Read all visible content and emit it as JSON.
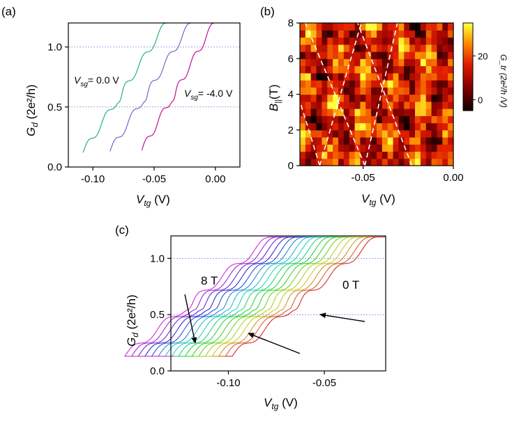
{
  "chart_data": [
    {
      "panel_label": "(a)",
      "type": "line",
      "xlabel_main": "V",
      "xlabel_sub": "tg",
      "xlabel_unit": " (V)",
      "ylabel_main": "G",
      "ylabel_sub": "d",
      "ylabel_unit": " (2e²/h)",
      "xlim": [
        -0.12,
        0.02
      ],
      "ylim": [
        0,
        1.2
      ],
      "xticks": [
        -0.1,
        -0.05,
        0.0
      ],
      "xtick_labels": [
        "-0.10",
        "-0.05",
        "0.00"
      ],
      "yticks": [
        0.0,
        0.5,
        1.0
      ],
      "ytick_labels": [
        "0.0",
        "0.5",
        "1.0"
      ],
      "grid_y": [
        0.5,
        1.0
      ],
      "annotations": [
        {
          "main": "V",
          "sub": "sg",
          "rest": "= 0.0 V"
        },
        {
          "main": "V",
          "sub": "sg",
          "rest": "= -4.0 V"
        }
      ],
      "series": [
        {
          "color": "#2ab07f",
          "x_start": -0.108,
          "x_end": -0.04,
          "y_start": 0.12,
          "y_end": 1.2
        },
        {
          "color": "#6c6cc4",
          "x_start": -0.086,
          "x_end": -0.02,
          "y_start": 0.13,
          "y_end": 1.2
        },
        {
          "color": "#c0109a",
          "x_start": -0.06,
          "x_end": -0.001,
          "y_start": 0.14,
          "y_end": 1.2
        }
      ]
    },
    {
      "panel_label": "(b)",
      "type": "heatmap",
      "xlabel_main": "V",
      "xlabel_sub": "tg",
      "xlabel_unit": " (V)",
      "ylabel_main": "B",
      "ylabel_sub": "||",
      "ylabel_unit": "(T)",
      "xlim": [
        -0.085,
        0.0
      ],
      "ylim": [
        0,
        8
      ],
      "xticks": [
        -0.05,
        0.0
      ],
      "xtick_labels": [
        "-0.05",
        "0.00"
      ],
      "yticks": [
        0,
        2,
        4,
        6,
        8
      ],
      "ytick_labels": [
        "0",
        "2",
        "4",
        "6",
        "8"
      ],
      "colorbar_label": "G_tr (2e²/h /V)",
      "colorbar_ticks": [
        0,
        20
      ],
      "colorbar_tick_labels": [
        "0",
        "20"
      ],
      "colorbar_range": [
        -5,
        35
      ],
      "dashed_lines": [
        {
          "x0": -0.074,
          "y0": 0,
          "x1": -0.085,
          "y1": 3.6
        },
        {
          "x0": -0.074,
          "y0": 0,
          "x1": -0.051,
          "y1": 8
        },
        {
          "x0": -0.049,
          "y0": 0,
          "x1": -0.082,
          "y1": 8
        },
        {
          "x0": -0.049,
          "y0": 0,
          "x1": -0.031,
          "y1": 8
        },
        {
          "x0": -0.023,
          "y0": 0,
          "x1": -0.053,
          "y1": 8
        }
      ]
    },
    {
      "panel_label": "(c)",
      "type": "line",
      "xlabel_main": "V",
      "xlabel_sub": "tg",
      "xlabel_unit": " (V)",
      "ylabel_main": "G",
      "ylabel_sub": "d",
      "ylabel_unit": " (2e²/h)",
      "xlim": [
        -0.13,
        -0.018
      ],
      "ylim": [
        0,
        1.2
      ],
      "xticks": [
        -0.1,
        -0.05
      ],
      "xtick_labels": [
        "-0.10",
        "-0.05"
      ],
      "yticks": [
        0.0,
        0.5,
        1.0
      ],
      "ytick_labels": [
        "0.0",
        "0.5",
        "1.0"
      ],
      "grid_y": [
        0.5,
        1.0
      ],
      "annotations": [
        "8 T",
        "0 T"
      ],
      "n_traces": 17,
      "trace_shift": -0.0035
    }
  ]
}
